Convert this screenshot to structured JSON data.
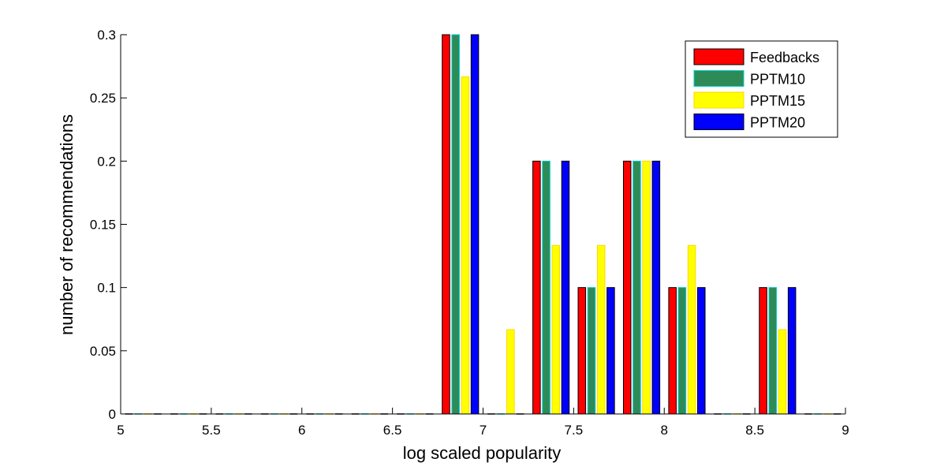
{
  "chart_data": {
    "type": "bar",
    "xlabel": "log scaled popularity",
    "ylabel": "number of recommendations",
    "xlim": [
      5,
      9
    ],
    "ylim": [
      0,
      0.3
    ],
    "x_ticks": [
      5,
      5.5,
      6,
      6.5,
      7,
      7.5,
      8,
      8.5,
      9
    ],
    "y_ticks": [
      0,
      0.05,
      0.1,
      0.15,
      0.2,
      0.25,
      0.3
    ],
    "x_tick_labels": [
      "5",
      "5.5",
      "6",
      "6.5",
      "7",
      "7.5",
      "8",
      "8.5",
      "9"
    ],
    "y_tick_labels": [
      "0",
      "0.05",
      "0.1",
      "0.15",
      "0.2",
      "0.25",
      "0.3"
    ],
    "grid": false,
    "legend_position": "top-right",
    "bin_centers": [
      5.125,
      5.375,
      5.625,
      5.875,
      6.125,
      6.375,
      6.625,
      6.875,
      7.125,
      7.375,
      7.625,
      7.875,
      8.125,
      8.375,
      8.625,
      8.875
    ],
    "series": [
      {
        "name": "Feedbacks",
        "color": "#ff0000",
        "edge": "#000000",
        "values": [
          0,
          0,
          0,
          0,
          0,
          0,
          0,
          0.3,
          0,
          0.2,
          0.1,
          0.2,
          0.1,
          0,
          0.1,
          0
        ]
      },
      {
        "name": "PPTM10",
        "color": "#2e8b57",
        "edge": "#00ced1",
        "values": [
          0,
          0,
          0,
          0,
          0,
          0,
          0,
          0.3,
          0,
          0.2,
          0.1,
          0.2,
          0.1,
          0,
          0.1,
          0
        ]
      },
      {
        "name": "PPTM15",
        "color": "#ffff00",
        "edge": "#ffd700",
        "values": [
          0,
          0,
          0,
          0,
          0,
          0,
          0,
          0.2667,
          0.0667,
          0.1333,
          0.1333,
          0.2,
          0.1333,
          0,
          0.0667,
          0
        ]
      },
      {
        "name": "PPTM20",
        "color": "#0000ff",
        "edge": "#000000",
        "values": [
          0,
          0,
          0,
          0,
          0,
          0,
          0,
          0.3,
          0,
          0.2,
          0.1,
          0.2,
          0.1,
          0,
          0.1,
          0
        ]
      }
    ]
  }
}
